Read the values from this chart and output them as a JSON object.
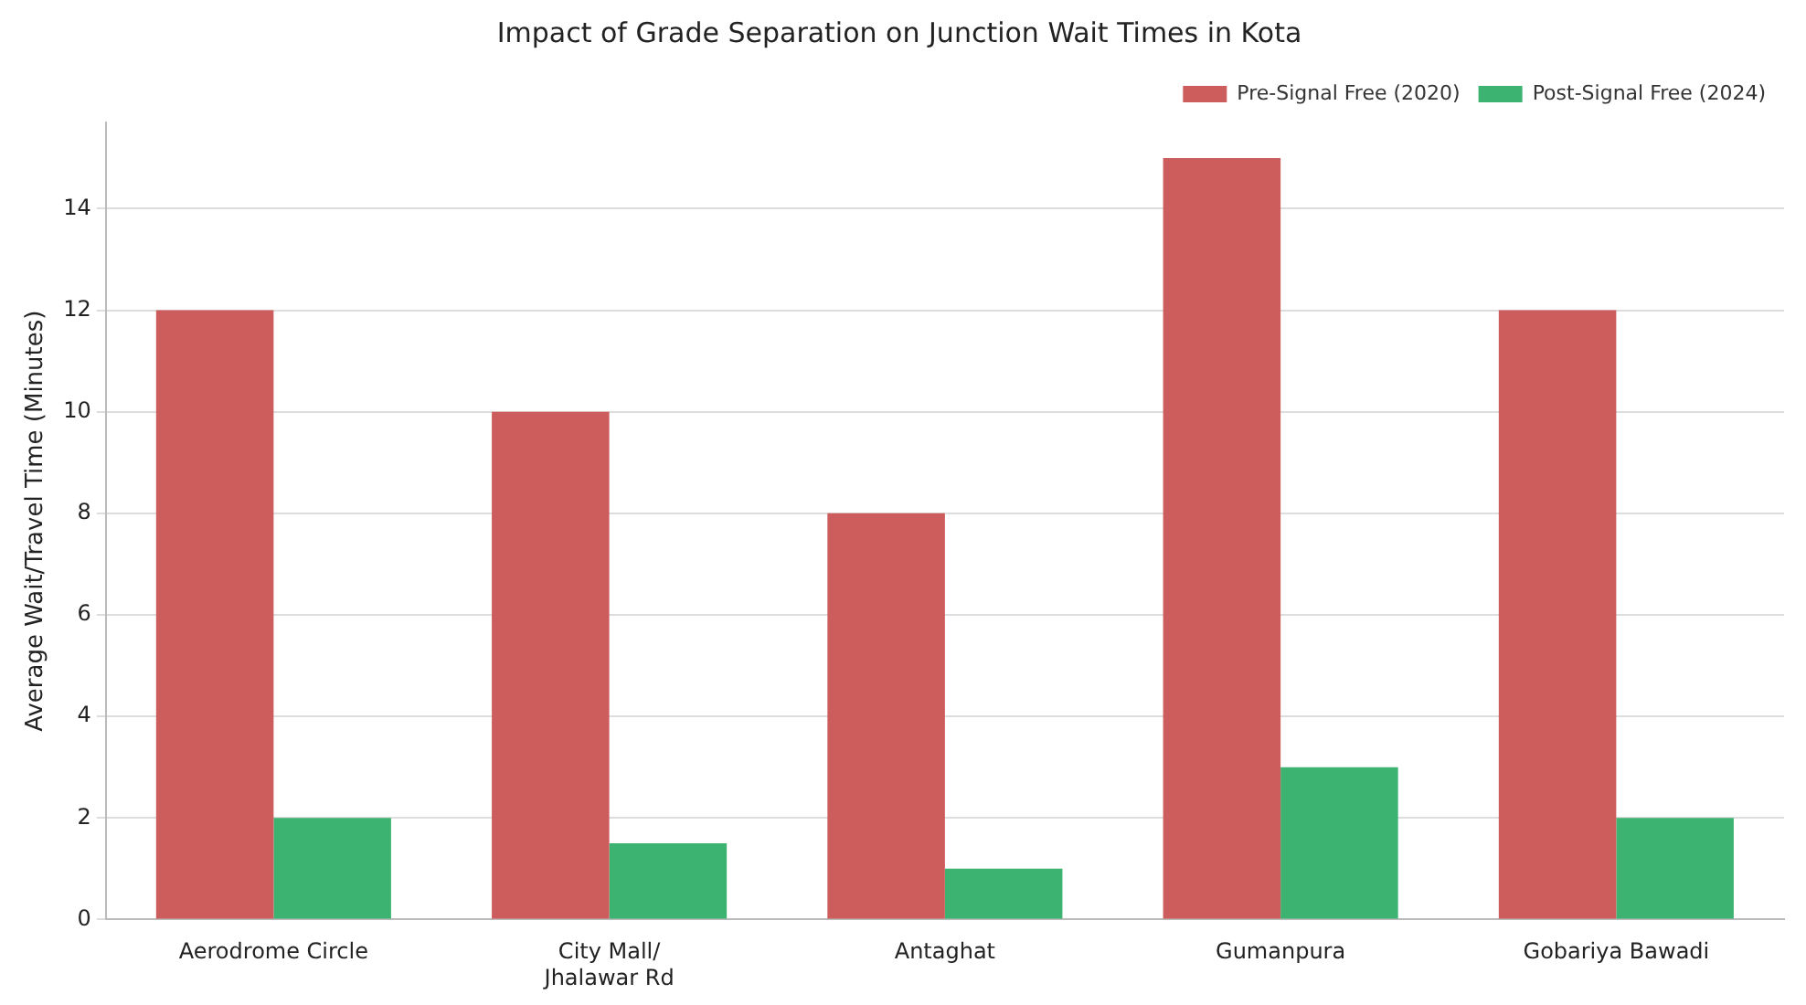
{
  "chart_data": {
    "type": "bar",
    "title": "Impact of Grade Separation on Junction Wait Times in Kota",
    "ylabel": "Average Wait/Travel Time (Minutes)",
    "categories": [
      "Aerodrome Circle",
      "City Mall/\nJhalawar Rd",
      "Antaghat",
      "Gumanpura",
      "Gobariya Bawadi"
    ],
    "series": [
      {
        "name": "Pre-Signal Free (2020)",
        "color": "#cd5c5c",
        "values": [
          12,
          10,
          8,
          15,
          12
        ]
      },
      {
        "name": "Post-Signal Free (2024)",
        "color": "#3cb371",
        "values": [
          2,
          1.5,
          1,
          3,
          2
        ]
      }
    ],
    "ylim": [
      0,
      15.7
    ],
    "yticks": [
      0,
      2,
      4,
      6,
      8,
      10,
      12,
      14
    ],
    "grid": "y",
    "legend": "top right"
  }
}
